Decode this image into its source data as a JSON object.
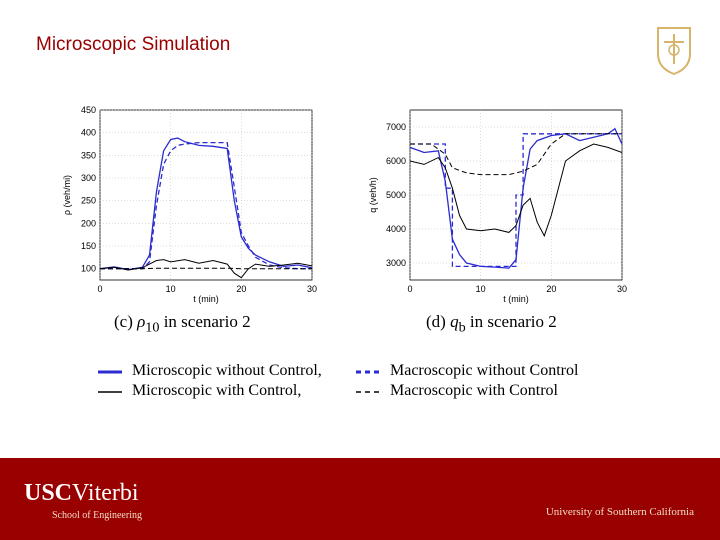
{
  "slide": {
    "title": "Microscopic Simulation"
  },
  "footer": {
    "brand_usc": "USC",
    "brand_viterbi": "Viterbi",
    "school": "School of Engineering",
    "university": "University of Southern California"
  },
  "captions": {
    "left_prefix": "(c)",
    "left_var": "ρ",
    "left_sub": "10",
    "left_suffix": "in scenario 2",
    "right_prefix": "(d)",
    "right_var": "q",
    "right_sub": "b",
    "right_suffix": "in scenario 2"
  },
  "legend": {
    "micro_no_control": "Microscopic without Control,",
    "macro_no_control": "Macroscopic without Control",
    "micro_control": "Microscopic with Control,",
    "macro_control": "Macroscopic with Control"
  },
  "colors": {
    "blue": "#2b2bd1",
    "black": "#000000",
    "brand": "#990000"
  },
  "chart_data": [
    {
      "type": "line",
      "xlabel": "t (min)",
      "ylabel": "ρ (veh/mi)",
      "xlim": [
        0,
        30
      ],
      "ylim": [
        75,
        450
      ],
      "xticks": [
        0,
        10,
        20,
        30
      ],
      "yticks": [
        100,
        150,
        200,
        250,
        300,
        350,
        400,
        450
      ],
      "grid": true,
      "series": [
        {
          "name": "Microscopic without Control",
          "color": "#2b2bd1",
          "dash": "solid",
          "x": [
            0,
            2,
            4,
            6,
            7,
            8,
            9,
            10,
            11,
            12,
            14,
            16,
            18,
            19,
            20,
            21,
            22,
            24,
            26,
            28,
            30
          ],
          "y": [
            100,
            104,
            98,
            103,
            130,
            270,
            360,
            385,
            388,
            380,
            372,
            370,
            365,
            250,
            170,
            145,
            130,
            115,
            105,
            108,
            102
          ]
        },
        {
          "name": "Macroscopic without Control",
          "color": "#2b2bd1",
          "dash": "dashed",
          "x": [
            0,
            2,
            4,
            6,
            7,
            8,
            9,
            10,
            11,
            12,
            14,
            16,
            18,
            19,
            20,
            21,
            22,
            24,
            26,
            28,
            30
          ],
          "y": [
            100,
            100,
            100,
            100,
            115,
            240,
            330,
            360,
            372,
            375,
            378,
            378,
            378,
            280,
            180,
            150,
            125,
            108,
            102,
            100,
            100
          ]
        },
        {
          "name": "Microscopic with Control",
          "color": "#000000",
          "dash": "solid",
          "x": [
            0,
            2,
            4,
            6,
            7,
            8,
            9,
            10,
            12,
            14,
            16,
            18,
            19,
            20,
            21,
            22,
            24,
            26,
            28,
            30
          ],
          "y": [
            100,
            103,
            97,
            102,
            110,
            118,
            120,
            115,
            120,
            112,
            118,
            110,
            90,
            80,
            100,
            110,
            105,
            108,
            112,
            106
          ]
        },
        {
          "name": "Macroscopic with Control",
          "color": "#000000",
          "dash": "dashed",
          "x": [
            0,
            4,
            6,
            8,
            10,
            12,
            14,
            16,
            18,
            20,
            22,
            24,
            26,
            28,
            30
          ],
          "y": [
            100,
            100,
            100,
            101,
            101,
            101,
            101,
            101,
            101,
            100,
            100,
            100,
            100,
            100,
            100
          ]
        }
      ]
    },
    {
      "type": "line",
      "xlabel": "t (min)",
      "ylabel": "q (veh/h)",
      "xlim": [
        0,
        30
      ],
      "ylim": [
        2500,
        7500
      ],
      "xticks": [
        0,
        10,
        20,
        30
      ],
      "yticks": [
        3000,
        4000,
        5000,
        6000,
        7000
      ],
      "grid": true,
      "series": [
        {
          "name": "Microscopic without Control",
          "color": "#2b2bd1",
          "dash": "solid",
          "x": [
            0,
            2,
            4,
            5,
            6,
            7,
            8,
            10,
            12,
            14,
            15,
            16,
            17,
            18,
            20,
            22,
            24,
            26,
            28,
            29,
            30
          ],
          "y": [
            6400,
            6250,
            6300,
            5400,
            3700,
            3250,
            3000,
            2900,
            2880,
            2850,
            3100,
            5200,
            6350,
            6600,
            6750,
            6800,
            6600,
            6700,
            6800,
            6950,
            6500
          ]
        },
        {
          "name": "Macroscopic without Control",
          "color": "#2b2bd1",
          "dash": "dashed",
          "x": [
            0,
            5,
            5,
            6,
            6,
            15,
            15,
            16,
            16,
            30
          ],
          "y": [
            6500,
            6500,
            5200,
            5200,
            2900,
            2900,
            5000,
            5000,
            6800,
            6800
          ]
        },
        {
          "name": "Microscopic with Control",
          "color": "#000000",
          "dash": "solid",
          "x": [
            0,
            2,
            4,
            5,
            6,
            7,
            8,
            10,
            12,
            14,
            15,
            16,
            17,
            18,
            19,
            20,
            22,
            24,
            26,
            28,
            30
          ],
          "y": [
            6000,
            5900,
            6100,
            5800,
            5200,
            4400,
            4000,
            3950,
            4000,
            3900,
            4100,
            4700,
            4900,
            4200,
            3800,
            4400,
            6000,
            6300,
            6500,
            6400,
            6250
          ]
        },
        {
          "name": "Macroscopic with Control",
          "color": "#000000",
          "dash": "dashed",
          "x": [
            0,
            3,
            5,
            6,
            8,
            10,
            12,
            14,
            15,
            16,
            18,
            20,
            22,
            24,
            26,
            28,
            30
          ],
          "y": [
            6500,
            6500,
            6200,
            5800,
            5650,
            5600,
            5600,
            5600,
            5650,
            5700,
            5900,
            6500,
            6800,
            6800,
            6800,
            6800,
            6800
          ]
        }
      ]
    }
  ]
}
